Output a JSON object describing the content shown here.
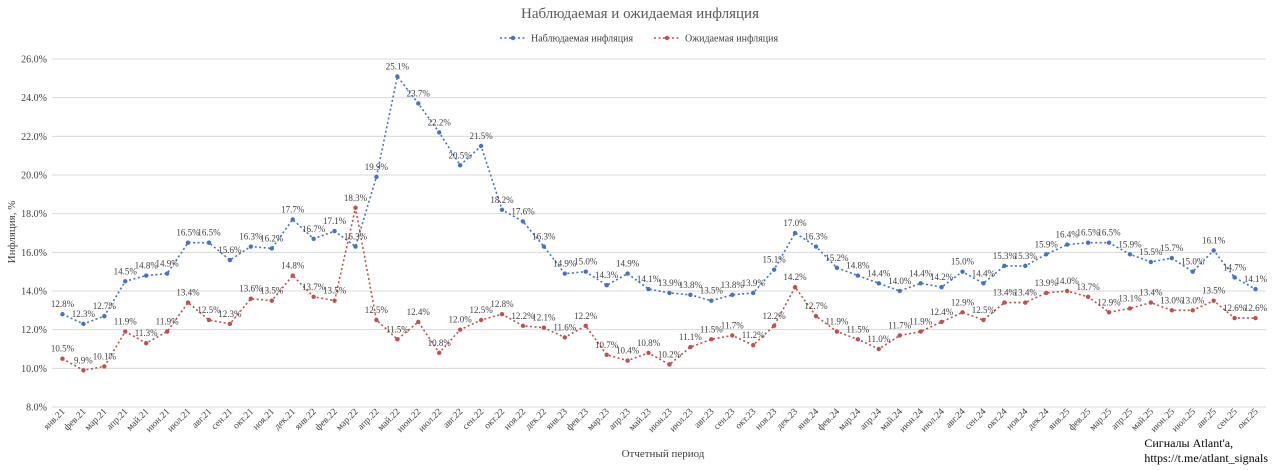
{
  "colors": {
    "observed": "#4472c4",
    "expected": "#c0504d"
  },
  "caption": {
    "line1": "Сигналы Atlant'a,",
    "line2": "https://t.me/atlant_signals"
  },
  "chart_data": {
    "type": "line",
    "title": "Наблюдаемая и ожидаемая инфляция",
    "xlabel": "Отчетный период",
    "ylabel": "Инфляция, %",
    "ylim": [
      8,
      26
    ],
    "ystep": 2,
    "ytick_labels": [
      "8.0%",
      "10.0%",
      "12.0%",
      "14.0%",
      "16.0%",
      "18.0%",
      "20.0%",
      "22.0%",
      "24.0%",
      "26.0%"
    ],
    "grid": true,
    "legend": "top-center",
    "categories": [
      "янв.21",
      "фев.21",
      "мар.21",
      "апр.21",
      "май.21",
      "июн.21",
      "июл.21",
      "авг.21",
      "сен.21",
      "окт.21",
      "ноя.21",
      "дек.21",
      "янв.22",
      "фев.22",
      "мар.22",
      "апр.22",
      "май.22",
      "июн.22",
      "июл.22",
      "авг.22",
      "сен.22",
      "окт.22",
      "ноя.22",
      "дек.22",
      "янв.23",
      "фев.23",
      "мар.23",
      "апр.23",
      "май.23",
      "июн.23",
      "июл.23",
      "авг.23",
      "сен.23",
      "окт.23",
      "ноя.23",
      "дек.23",
      "янв.24",
      "фев.24",
      "мар.24",
      "апр.24",
      "май.24",
      "июн.24",
      "июл.24",
      "авг.24",
      "сен.24",
      "окт.24",
      "ноя.24",
      "дек.24",
      "янв.25",
      "фев.25",
      "мар.25",
      "апр.25",
      "май.25",
      "июн.25",
      "июл.25",
      "авг.25",
      "сен.25",
      "окт.25"
    ],
    "series": [
      {
        "name": "Наблюдаемая инфляция",
        "values": [
          12.8,
          12.3,
          12.7,
          14.5,
          14.8,
          14.9,
          16.5,
          16.5,
          15.6,
          16.3,
          16.2,
          17.7,
          16.7,
          17.1,
          16.3,
          19.9,
          25.1,
          23.7,
          22.2,
          20.5,
          21.5,
          18.2,
          17.6,
          16.3,
          14.9,
          15.0,
          14.3,
          14.9,
          14.1,
          13.9,
          13.8,
          13.5,
          13.8,
          13.9,
          15.1,
          17.0,
          16.3,
          15.2,
          14.8,
          14.4,
          14.0,
          14.4,
          14.2,
          15.0,
          14.4,
          15.3,
          15.3,
          15.9,
          16.4,
          16.5,
          16.5,
          15.9,
          15.5,
          15.7,
          15.0,
          16.1,
          14.7,
          14.1
        ],
        "labels": [
          "12.8%",
          "12.3%",
          "12.7%",
          "14.5%",
          "14.8%",
          "14.9%",
          "16.5%",
          "16.5%",
          "15.6%",
          "16.3%",
          "16.2%",
          "17.7%",
          "16.7%",
          "17.1%",
          "16.3%",
          "19.9%",
          "25.1%",
          "23.7%",
          "22.2%",
          "20.5%",
          "21.5%",
          "18.2%",
          "17.6%",
          "16.3%",
          "14.9%",
          "15.0%",
          "14.3%",
          "14.9%",
          "14.1%",
          "13.9%",
          "13.8%",
          "13.5%",
          "13.8%",
          "13.9%",
          "15.1%",
          "17.0%",
          "16.3%",
          "15.2%",
          "14.8%",
          "14.4%",
          "14.0%",
          "14.4%",
          "14.2%",
          "15.0%",
          "14.4%",
          "15.3%",
          "15.3%",
          "15.9%",
          "16.4%",
          "16.5%",
          "16.5%",
          "15.9%",
          "15.5%",
          "15.7%",
          "15.0%",
          "16.1%",
          "14.7%",
          "14.1%"
        ]
      },
      {
        "name": "Ожидаемая инфляция",
        "values": [
          10.5,
          9.9,
          10.1,
          11.9,
          11.3,
          11.9,
          13.4,
          12.5,
          12.3,
          13.6,
          13.5,
          14.8,
          13.7,
          13.5,
          18.3,
          12.5,
          11.5,
          12.4,
          10.8,
          12.0,
          12.5,
          12.8,
          12.2,
          12.1,
          11.6,
          12.2,
          10.7,
          10.4,
          10.8,
          10.2,
          11.1,
          11.5,
          11.7,
          11.2,
          12.2,
          14.2,
          12.7,
          11.9,
          11.5,
          11.0,
          11.7,
          11.9,
          12.4,
          12.9,
          12.5,
          13.4,
          13.4,
          13.9,
          14.0,
          13.7,
          12.9,
          13.1,
          13.4,
          13.0,
          13.0,
          13.5,
          12.6,
          12.6
        ],
        "labels": [
          "10.5%",
          "9.9%",
          "10.1%",
          "11.9%",
          "11.3%",
          "11.9%",
          "13.4%",
          "12.5%",
          "12.3%",
          "13.6%",
          "13.5%",
          "14.8%",
          "13.7%",
          "13.5%",
          "18.3%",
          "12.5%",
          "11.5%",
          "12.4%",
          "10.8%",
          "12.0%",
          "12.5%",
          "12.8%",
          "12.2%",
          "12.1%",
          "11.6%",
          "12.2%",
          "10.7%",
          "10.4%",
          "10.8%",
          "10.2%",
          "11.1%",
          "11.5%",
          "11.7%",
          "11.2%",
          "12.2%",
          "14.2%",
          "12.7%",
          "11.9%",
          "11.5%",
          "11.0%",
          "11.7%",
          "11.9%",
          "12.4%",
          "12.9%",
          "12.5%",
          "13.4%",
          "13.4%",
          "13.9%",
          "14.0%",
          "13.7%",
          "12.9%",
          "13.1%",
          "13.4%",
          "13.0%",
          "13.0%",
          "13.5%",
          "12.6%",
          "12.6%"
        ]
      }
    ]
  }
}
